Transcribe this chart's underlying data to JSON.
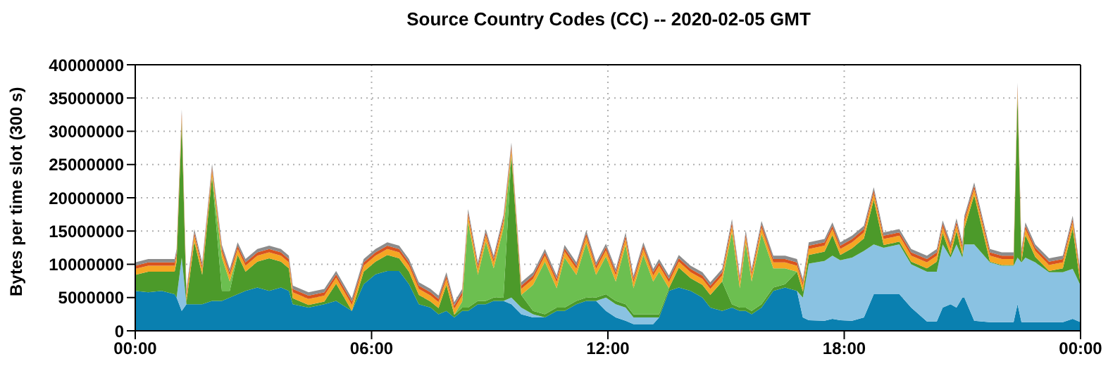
{
  "chart_data": {
    "type": "area",
    "title": "Source Country Codes (CC) -- 2020-02-05 GMT",
    "ylabel": "Bytes per time slot (300 s)",
    "stacked": true,
    "grid": true,
    "xlim": [
      0,
      24
    ],
    "xticks": [
      {
        "value": 0,
        "label": "00:00"
      },
      {
        "value": 6,
        "label": "06:00"
      },
      {
        "value": 12,
        "label": "12:00"
      },
      {
        "value": 18,
        "label": "18:00"
      },
      {
        "value": 24,
        "label": "00:00"
      }
    ],
    "ylim": [
      0,
      40000000
    ],
    "yticks": [
      0,
      5000000,
      10000000,
      15000000,
      20000000,
      25000000,
      30000000,
      35000000,
      40000000
    ],
    "x": [
      0,
      0.33,
      0.67,
      1.0,
      1.05,
      1.18,
      1.3,
      1.5,
      1.7,
      1.95,
      2.2,
      2.4,
      2.6,
      2.8,
      3.1,
      3.4,
      3.7,
      3.9,
      4.0,
      4.4,
      4.8,
      5.1,
      5.5,
      5.8,
      6.1,
      6.4,
      6.7,
      6.95,
      7.2,
      7.5,
      7.7,
      7.9,
      8.1,
      8.3,
      8.45,
      8.7,
      8.9,
      9.1,
      9.35,
      9.55,
      9.8,
      10.1,
      10.4,
      10.7,
      10.9,
      11.2,
      11.45,
      11.7,
      11.95,
      12.2,
      12.45,
      12.65,
      12.9,
      13.15,
      13.3,
      13.55,
      13.8,
      14.1,
      14.4,
      14.6,
      14.9,
      15.15,
      15.35,
      15.5,
      15.65,
      15.9,
      16.2,
      16.5,
      16.8,
      16.95,
      17.1,
      17.5,
      17.7,
      17.9,
      18.2,
      18.5,
      18.75,
      19.0,
      19.4,
      19.7,
      20.1,
      20.35,
      20.5,
      20.7,
      20.85,
      21.0,
      21.05,
      21.3,
      21.7,
      22.0,
      22.3,
      22.4,
      22.5,
      22.6,
      22.85,
      23.2,
      23.55,
      23.8,
      24.0
    ],
    "series": [
      {
        "color": "#0a80b0",
        "values": [
          6000000,
          5800000,
          6000000,
          5500000,
          5000000,
          3000000,
          4000000,
          4000000,
          4000000,
          4500000,
          4500000,
          5000000,
          5500000,
          6000000,
          6500000,
          6000000,
          6500000,
          6000000,
          4000000,
          3500000,
          4000000,
          4500000,
          3000000,
          7000000,
          8500000,
          9000000,
          9000000,
          7000000,
          4000000,
          3500000,
          2500000,
          3000000,
          2000000,
          3000000,
          3000000,
          4000000,
          4000000,
          4500000,
          4500000,
          4000000,
          2500000,
          2000000,
          2000000,
          3000000,
          3000000,
          4000000,
          4500000,
          4500000,
          3000000,
          2000000,
          1500000,
          1000000,
          1000000,
          1000000,
          2000000,
          6000000,
          6500000,
          6000000,
          5000000,
          3500000,
          3000000,
          3500000,
          3000000,
          3000000,
          2500000,
          3500000,
          6000000,
          6500000,
          6000000,
          2000000,
          1600000,
          1500000,
          1800000,
          1600000,
          1500000,
          2000000,
          5500000,
          5500000,
          5500000,
          3500000,
          1400000,
          1400000,
          3500000,
          4000000,
          3500000,
          5000000,
          5000000,
          1500000,
          1300000,
          1300000,
          1300000,
          4000000,
          1300000,
          1300000,
          1300000,
          1300000,
          1300000,
          1800000,
          1300000
        ]
      },
      {
        "color": "#8ac2e2",
        "values": [
          0,
          0,
          0,
          0,
          0,
          8000000,
          0,
          0,
          0,
          0,
          0,
          0,
          0,
          0,
          0,
          0,
          0,
          0,
          0,
          0,
          0,
          0,
          0,
          0,
          0,
          0,
          0,
          0,
          0,
          0,
          0,
          0,
          0,
          0,
          0,
          0,
          0,
          0,
          0,
          1000000,
          1000000,
          500000,
          0,
          0,
          0,
          0,
          0,
          0,
          2000000,
          2000000,
          2000000,
          1000000,
          1000000,
          1000000,
          0,
          0,
          0,
          0,
          0,
          0,
          0,
          0,
          0,
          0,
          0,
          0,
          0,
          0,
          0,
          3000000,
          8500000,
          9000000,
          9500000,
          9000000,
          9500000,
          10000000,
          7500000,
          7000000,
          7500000,
          6500000,
          7500000,
          7500000,
          9500000,
          7000000,
          9500000,
          6000000,
          8000000,
          11500000,
          9000000,
          8500000,
          8500000,
          7000000,
          9000000,
          9700000,
          9000000,
          7500000,
          7500000,
          7500000,
          5500000
        ]
      },
      {
        "color": "#4c9a2a",
        "values": [
          2400000,
          3100000,
          2900000,
          3400000,
          5400000,
          20400000,
          400000,
          9400000,
          4400000,
          18700000,
          1500000,
          1000000,
          5900000,
          2900000,
          3900000,
          4900000,
          3900000,
          3400000,
          900000,
          400000,
          400000,
          2600000,
          0,
          1900000,
          1900000,
          2400000,
          1900000,
          1900000,
          1400000,
          900000,
          900000,
          3900000,
          400000,
          500000,
          500000,
          500000,
          500000,
          500000,
          500000,
          21400000,
          1900000,
          500000,
          500000,
          500000,
          500000,
          500000,
          500000,
          500000,
          500000,
          500000,
          500000,
          500000,
          500000,
          500000,
          500000,
          400000,
          3000000,
          1900000,
          1900000,
          1900000,
          4400000,
          500000,
          500000,
          500000,
          500000,
          500000,
          500000,
          500000,
          2900000,
          900000,
          1300000,
          1400000,
          3100000,
          800000,
          1400000,
          1900000,
          6700000,
          400000,
          400000,
          400000,
          500000,
          1500000,
          1700000,
          400000,
          2000000,
          400000,
          2400000,
          7400000,
          100000,
          100000,
          100000,
          24400000,
          100000,
          3400000,
          800000,
          200000,
          600000,
          6100000,
          100000
        ]
      },
      {
        "color": "#6cbf50",
        "values": [
          0,
          0,
          0,
          0,
          0,
          0,
          0,
          0,
          0,
          0,
          5000000,
          1400000,
          0,
          0,
          0,
          0,
          0,
          0,
          0,
          0,
          0,
          0,
          0,
          0,
          0,
          0,
          0,
          0,
          0,
          0,
          0,
          0,
          0,
          900000,
          12900000,
          3900000,
          8900000,
          4400000,
          10500000,
          0,
          0,
          3900000,
          7900000,
          2900000,
          7500000,
          3900000,
          8200000,
          3400000,
          5700000,
          2900000,
          8900000,
          3900000,
          8900000,
          4900000,
          6400000,
          0,
          0,
          0,
          0,
          0,
          0,
          10900000,
          2900000,
          9700000,
          4400000,
          10600000,
          2900000,
          2400000,
          0,
          0,
          0,
          0,
          0,
          0,
          0,
          0,
          0,
          0,
          0,
          0,
          0,
          0,
          0,
          0,
          0,
          0,
          0,
          0,
          0,
          0,
          0,
          0,
          0,
          0,
          0,
          0,
          0,
          0,
          0
        ]
      },
      {
        "color": "#f5a623",
        "values": [
          900000,
          900000,
          900000,
          900000,
          900000,
          900000,
          900000,
          900000,
          900000,
          900000,
          900000,
          900000,
          900000,
          900000,
          900000,
          900000,
          900000,
          900000,
          900000,
          900000,
          900000,
          900000,
          900000,
          900000,
          900000,
          900000,
          900000,
          900000,
          900000,
          900000,
          900000,
          900000,
          900000,
          900000,
          900000,
          900000,
          900000,
          900000,
          900000,
          900000,
          900000,
          900000,
          900000,
          900000,
          900000,
          900000,
          900000,
          900000,
          900000,
          900000,
          900000,
          900000,
          900000,
          900000,
          900000,
          900000,
          900000,
          900000,
          900000,
          900000,
          900000,
          900000,
          900000,
          900000,
          900000,
          900000,
          900000,
          900000,
          900000,
          900000,
          900000,
          900000,
          900000,
          900000,
          900000,
          900000,
          900000,
          900000,
          900000,
          900000,
          900000,
          900000,
          900000,
          900000,
          900000,
          900000,
          900000,
          900000,
          900000,
          900000,
          900000,
          900000,
          900000,
          900000,
          900000,
          900000,
          900000,
          900000,
          900000
        ]
      },
      {
        "color": "#d9531e",
        "values": [
          500000,
          500000,
          500000,
          500000,
          500000,
          500000,
          500000,
          500000,
          500000,
          500000,
          500000,
          500000,
          500000,
          500000,
          500000,
          500000,
          500000,
          500000,
          500000,
          500000,
          500000,
          500000,
          500000,
          500000,
          500000,
          500000,
          500000,
          500000,
          500000,
          500000,
          500000,
          500000,
          500000,
          500000,
          500000,
          500000,
          500000,
          500000,
          500000,
          500000,
          500000,
          500000,
          500000,
          500000,
          500000,
          500000,
          500000,
          500000,
          500000,
          500000,
          500000,
          500000,
          500000,
          500000,
          500000,
          500000,
          500000,
          500000,
          500000,
          500000,
          500000,
          500000,
          500000,
          500000,
          500000,
          500000,
          500000,
          500000,
          500000,
          500000,
          500000,
          500000,
          500000,
          500000,
          500000,
          500000,
          500000,
          500000,
          500000,
          500000,
          500000,
          500000,
          500000,
          500000,
          500000,
          500000,
          500000,
          500000,
          500000,
          500000,
          500000,
          500000,
          500000,
          500000,
          500000,
          500000,
          500000,
          500000,
          500000
        ]
      },
      {
        "color": "#8c8c8c",
        "values": [
          500000,
          500000,
          500000,
          500000,
          500000,
          500000,
          500000,
          500000,
          500000,
          500000,
          500000,
          500000,
          500000,
          500000,
          500000,
          500000,
          500000,
          500000,
          500000,
          500000,
          500000,
          500000,
          500000,
          500000,
          500000,
          500000,
          500000,
          500000,
          500000,
          500000,
          500000,
          500000,
          500000,
          500000,
          500000,
          500000,
          500000,
          500000,
          500000,
          500000,
          500000,
          500000,
          500000,
          500000,
          500000,
          500000,
          500000,
          500000,
          500000,
          500000,
          500000,
          500000,
          500000,
          500000,
          500000,
          500000,
          500000,
          500000,
          500000,
          500000,
          500000,
          500000,
          500000,
          500000,
          500000,
          500000,
          500000,
          500000,
          500000,
          500000,
          500000,
          500000,
          500000,
          500000,
          500000,
          500000,
          500000,
          500000,
          500000,
          500000,
          500000,
          500000,
          500000,
          500000,
          500000,
          500000,
          500000,
          500000,
          500000,
          500000,
          500000,
          500000,
          500000,
          500000,
          500000,
          500000,
          500000,
          500000,
          500000
        ]
      }
    ]
  }
}
